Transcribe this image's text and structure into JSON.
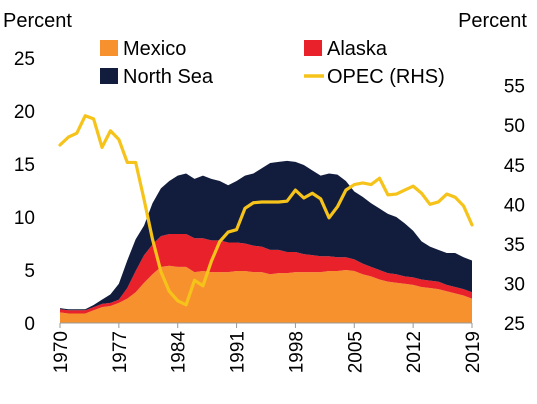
{
  "chart_data": {
    "type": "area",
    "left_axis_title": "Percent",
    "right_axis_title": "Percent",
    "x": [
      1970,
      1971,
      1972,
      1973,
      1974,
      1975,
      1976,
      1977,
      1978,
      1979,
      1980,
      1981,
      1982,
      1983,
      1984,
      1985,
      1986,
      1987,
      1988,
      1989,
      1990,
      1991,
      1992,
      1993,
      1994,
      1995,
      1996,
      1997,
      1998,
      1999,
      2000,
      2001,
      2002,
      2003,
      2004,
      2005,
      2006,
      2007,
      2008,
      2009,
      2010,
      2011,
      2012,
      2013,
      2014,
      2015,
      2016,
      2017,
      2018,
      2019
    ],
    "x_tick_labels": [
      "1970",
      "1977",
      "1984",
      "1991",
      "1998",
      "2005",
      "2012",
      "2019"
    ],
    "x_tick_values": [
      1970,
      1977,
      1984,
      1991,
      1998,
      2005,
      2012,
      2019
    ],
    "left_ylim": [
      0,
      25
    ],
    "left_ticks": [
      "0",
      "5",
      "10",
      "15",
      "20",
      "25"
    ],
    "left_tick_values": [
      0,
      5,
      10,
      15,
      20,
      25
    ],
    "right_ylim": [
      25,
      58.5
    ],
    "right_ticks": [
      "25",
      "30",
      "35",
      "40",
      "45",
      "50",
      "55"
    ],
    "right_tick_values": [
      25,
      30,
      35,
      40,
      45,
      50,
      55
    ],
    "grid": false,
    "legend": [
      {
        "label": "Mexico",
        "kind": "area",
        "color": "#f7912e"
      },
      {
        "label": "Alaska",
        "kind": "area",
        "color": "#e8212b"
      },
      {
        "label": "North Sea",
        "kind": "area",
        "color": "#121d3d"
      },
      {
        "label": "OPEC (RHS)",
        "kind": "line",
        "color": "#f6c31a"
      }
    ],
    "stacked_series": [
      {
        "name": "Mexico",
        "color": "#f7912e",
        "values": [
          1.0,
          0.9,
          0.9,
          0.9,
          1.2,
          1.5,
          1.6,
          1.9,
          2.3,
          2.9,
          3.8,
          4.6,
          5.3,
          5.4,
          5.3,
          5.3,
          4.8,
          4.9,
          4.8,
          4.8,
          4.8,
          4.9,
          4.9,
          4.8,
          4.8,
          4.6,
          4.7,
          4.7,
          4.8,
          4.8,
          4.8,
          4.8,
          4.9,
          4.9,
          5.0,
          4.9,
          4.6,
          4.4,
          4.1,
          3.9,
          3.8,
          3.7,
          3.6,
          3.4,
          3.3,
          3.2,
          3.0,
          2.8,
          2.6,
          2.3
        ]
      },
      {
        "name": "Alaska",
        "color": "#e8212b",
        "values": [
          0.3,
          0.3,
          0.3,
          0.3,
          0.3,
          0.3,
          0.3,
          0.3,
          1.0,
          2.0,
          2.6,
          2.8,
          2.9,
          3.0,
          3.1,
          3.1,
          3.2,
          3.1,
          3.0,
          3.0,
          2.8,
          2.7,
          2.6,
          2.5,
          2.4,
          2.3,
          2.2,
          2.0,
          1.9,
          1.7,
          1.6,
          1.5,
          1.4,
          1.3,
          1.2,
          1.1,
          1.0,
          0.9,
          0.9,
          0.8,
          0.8,
          0.7,
          0.7,
          0.7,
          0.7,
          0.7,
          0.6,
          0.6,
          0.6,
          0.6
        ]
      },
      {
        "name": "North Sea",
        "color": "#121d3d",
        "values": [
          0.1,
          0.1,
          0.1,
          0.1,
          0.2,
          0.4,
          0.8,
          1.5,
          2.6,
          3.0,
          2.8,
          3.9,
          4.5,
          5.0,
          5.5,
          5.7,
          5.6,
          5.9,
          5.8,
          5.6,
          5.4,
          5.8,
          6.4,
          6.8,
          7.4,
          8.2,
          8.3,
          8.6,
          8.5,
          8.4,
          8.0,
          7.6,
          7.8,
          7.8,
          7.2,
          6.4,
          6.3,
          6.0,
          5.8,
          5.6,
          5.4,
          5.0,
          4.4,
          3.6,
          3.2,
          3.0,
          3.0,
          3.2,
          3.0,
          3.0
        ]
      }
    ],
    "line_series": {
      "name": "OPEC (RHS)",
      "color": "#f6c31a",
      "axis": "right",
      "values": [
        47.5,
        48.5,
        49.0,
        51.2,
        50.8,
        47.2,
        49.3,
        48.2,
        45.3,
        45.3,
        40.6,
        35.6,
        31.5,
        29.0,
        27.8,
        27.3,
        30.4,
        29.7,
        32.8,
        35.3,
        36.5,
        36.8,
        39.5,
        40.2,
        40.3,
        40.3,
        40.3,
        40.4,
        41.8,
        40.8,
        41.4,
        40.7,
        38.3,
        39.7,
        41.8,
        42.5,
        42.7,
        42.5,
        43.3,
        41.2,
        41.3,
        41.8,
        42.3,
        41.4,
        40.0,
        40.3,
        41.3,
        40.9,
        39.8,
        37.4
      ]
    }
  }
}
